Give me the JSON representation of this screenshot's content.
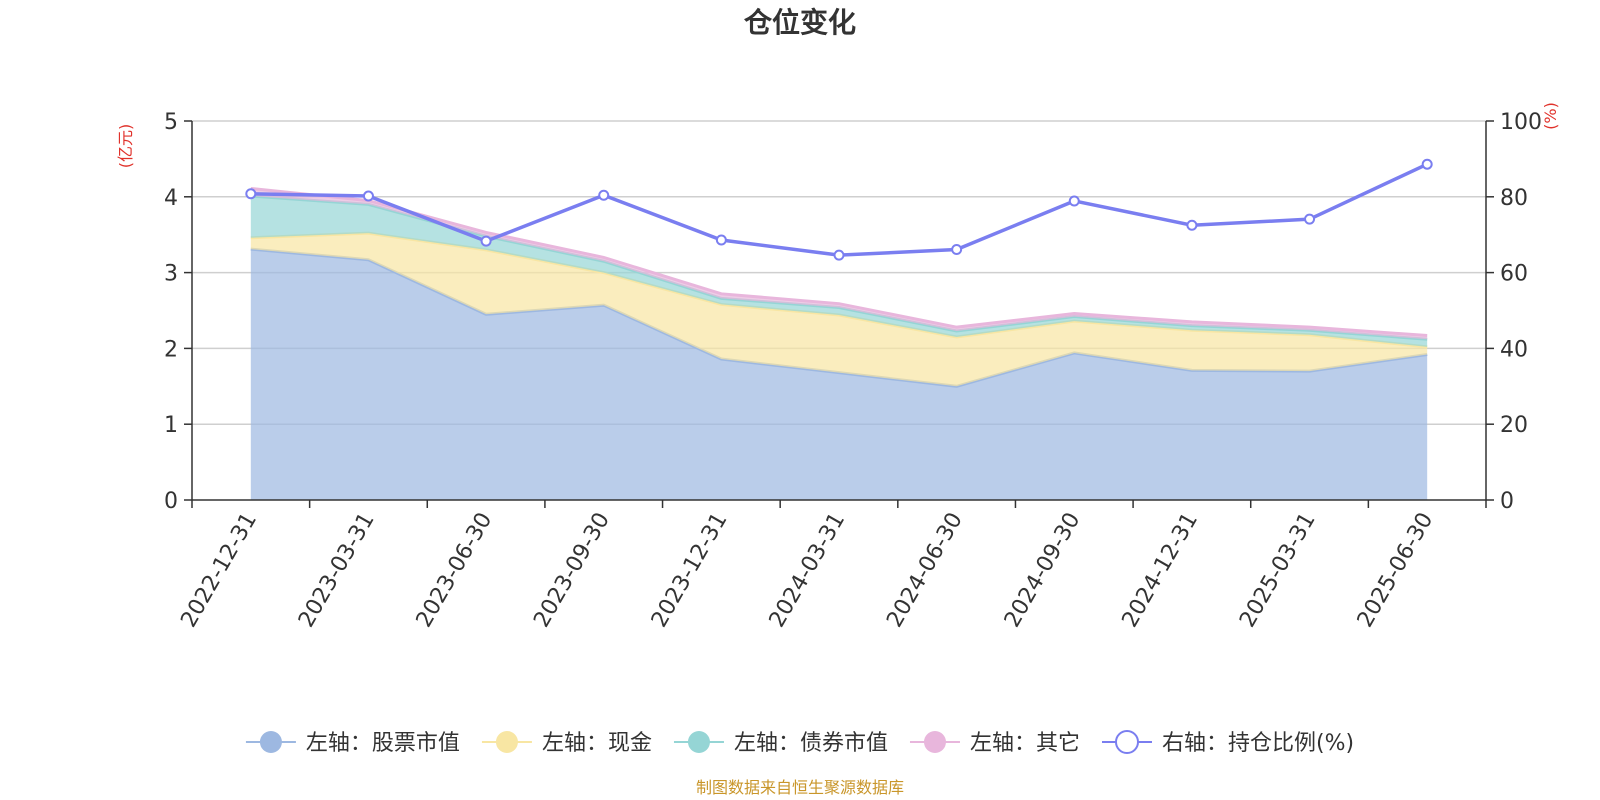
{
  "chart_data": {
    "type": "area",
    "title": "仓位变化",
    "categories": [
      "2022-12-31",
      "2023-03-31",
      "2023-06-30",
      "2023-09-30",
      "2023-12-31",
      "2024-03-31",
      "2024-06-30",
      "2024-09-30",
      "2024-12-31",
      "2025-03-31",
      "2025-06-30"
    ],
    "left_axis": {
      "unit": "(亿元)",
      "ylim": [
        0,
        5
      ],
      "ticks": [
        "0",
        "1",
        "2",
        "3",
        "4",
        "5"
      ]
    },
    "right_axis": {
      "unit": "(%)",
      "ylim": [
        0,
        100
      ],
      "ticks": [
        "0",
        "20",
        "40",
        "60",
        "80",
        "100"
      ]
    },
    "stacked_series": [
      {
        "name": "左轴：股票市值",
        "color": "#9db8e1",
        "values": [
          3.31,
          3.17,
          2.45,
          2.57,
          1.86,
          1.68,
          1.5,
          1.94,
          1.71,
          1.7,
          1.92
        ]
      },
      {
        "name": "左轴：现金",
        "color": "#f8e6a3",
        "values": [
          0.15,
          0.35,
          0.85,
          0.43,
          0.72,
          0.76,
          0.65,
          0.42,
          0.53,
          0.48,
          0.1
        ]
      },
      {
        "name": "左轴：债券市值",
        "color": "#95d5d5",
        "values": [
          0.55,
          0.38,
          0.18,
          0.15,
          0.08,
          0.1,
          0.08,
          0.06,
          0.06,
          0.06,
          0.1
        ]
      },
      {
        "name": "左轴：其它",
        "color": "#e8b6dc",
        "values": [
          0.1,
          0.05,
          0.05,
          0.05,
          0.06,
          0.05,
          0.05,
          0.04,
          0.05,
          0.04,
          0.05
        ]
      }
    ],
    "line_series": {
      "name": "右轴：持仓比例(%)",
      "color": "#7a7ef0",
      "values": [
        80.8,
        80.2,
        68.3,
        80.4,
        68.6,
        64.6,
        66.1,
        78.9,
        72.5,
        74.1,
        88.6
      ]
    },
    "grid": true,
    "legend_position": "bottom"
  },
  "footer": {
    "source": "制图数据来自恒生聚源数据库"
  },
  "colors": {
    "left_unit": "#e0322b",
    "right_unit": "#e0322b",
    "source": "#c9962a"
  }
}
